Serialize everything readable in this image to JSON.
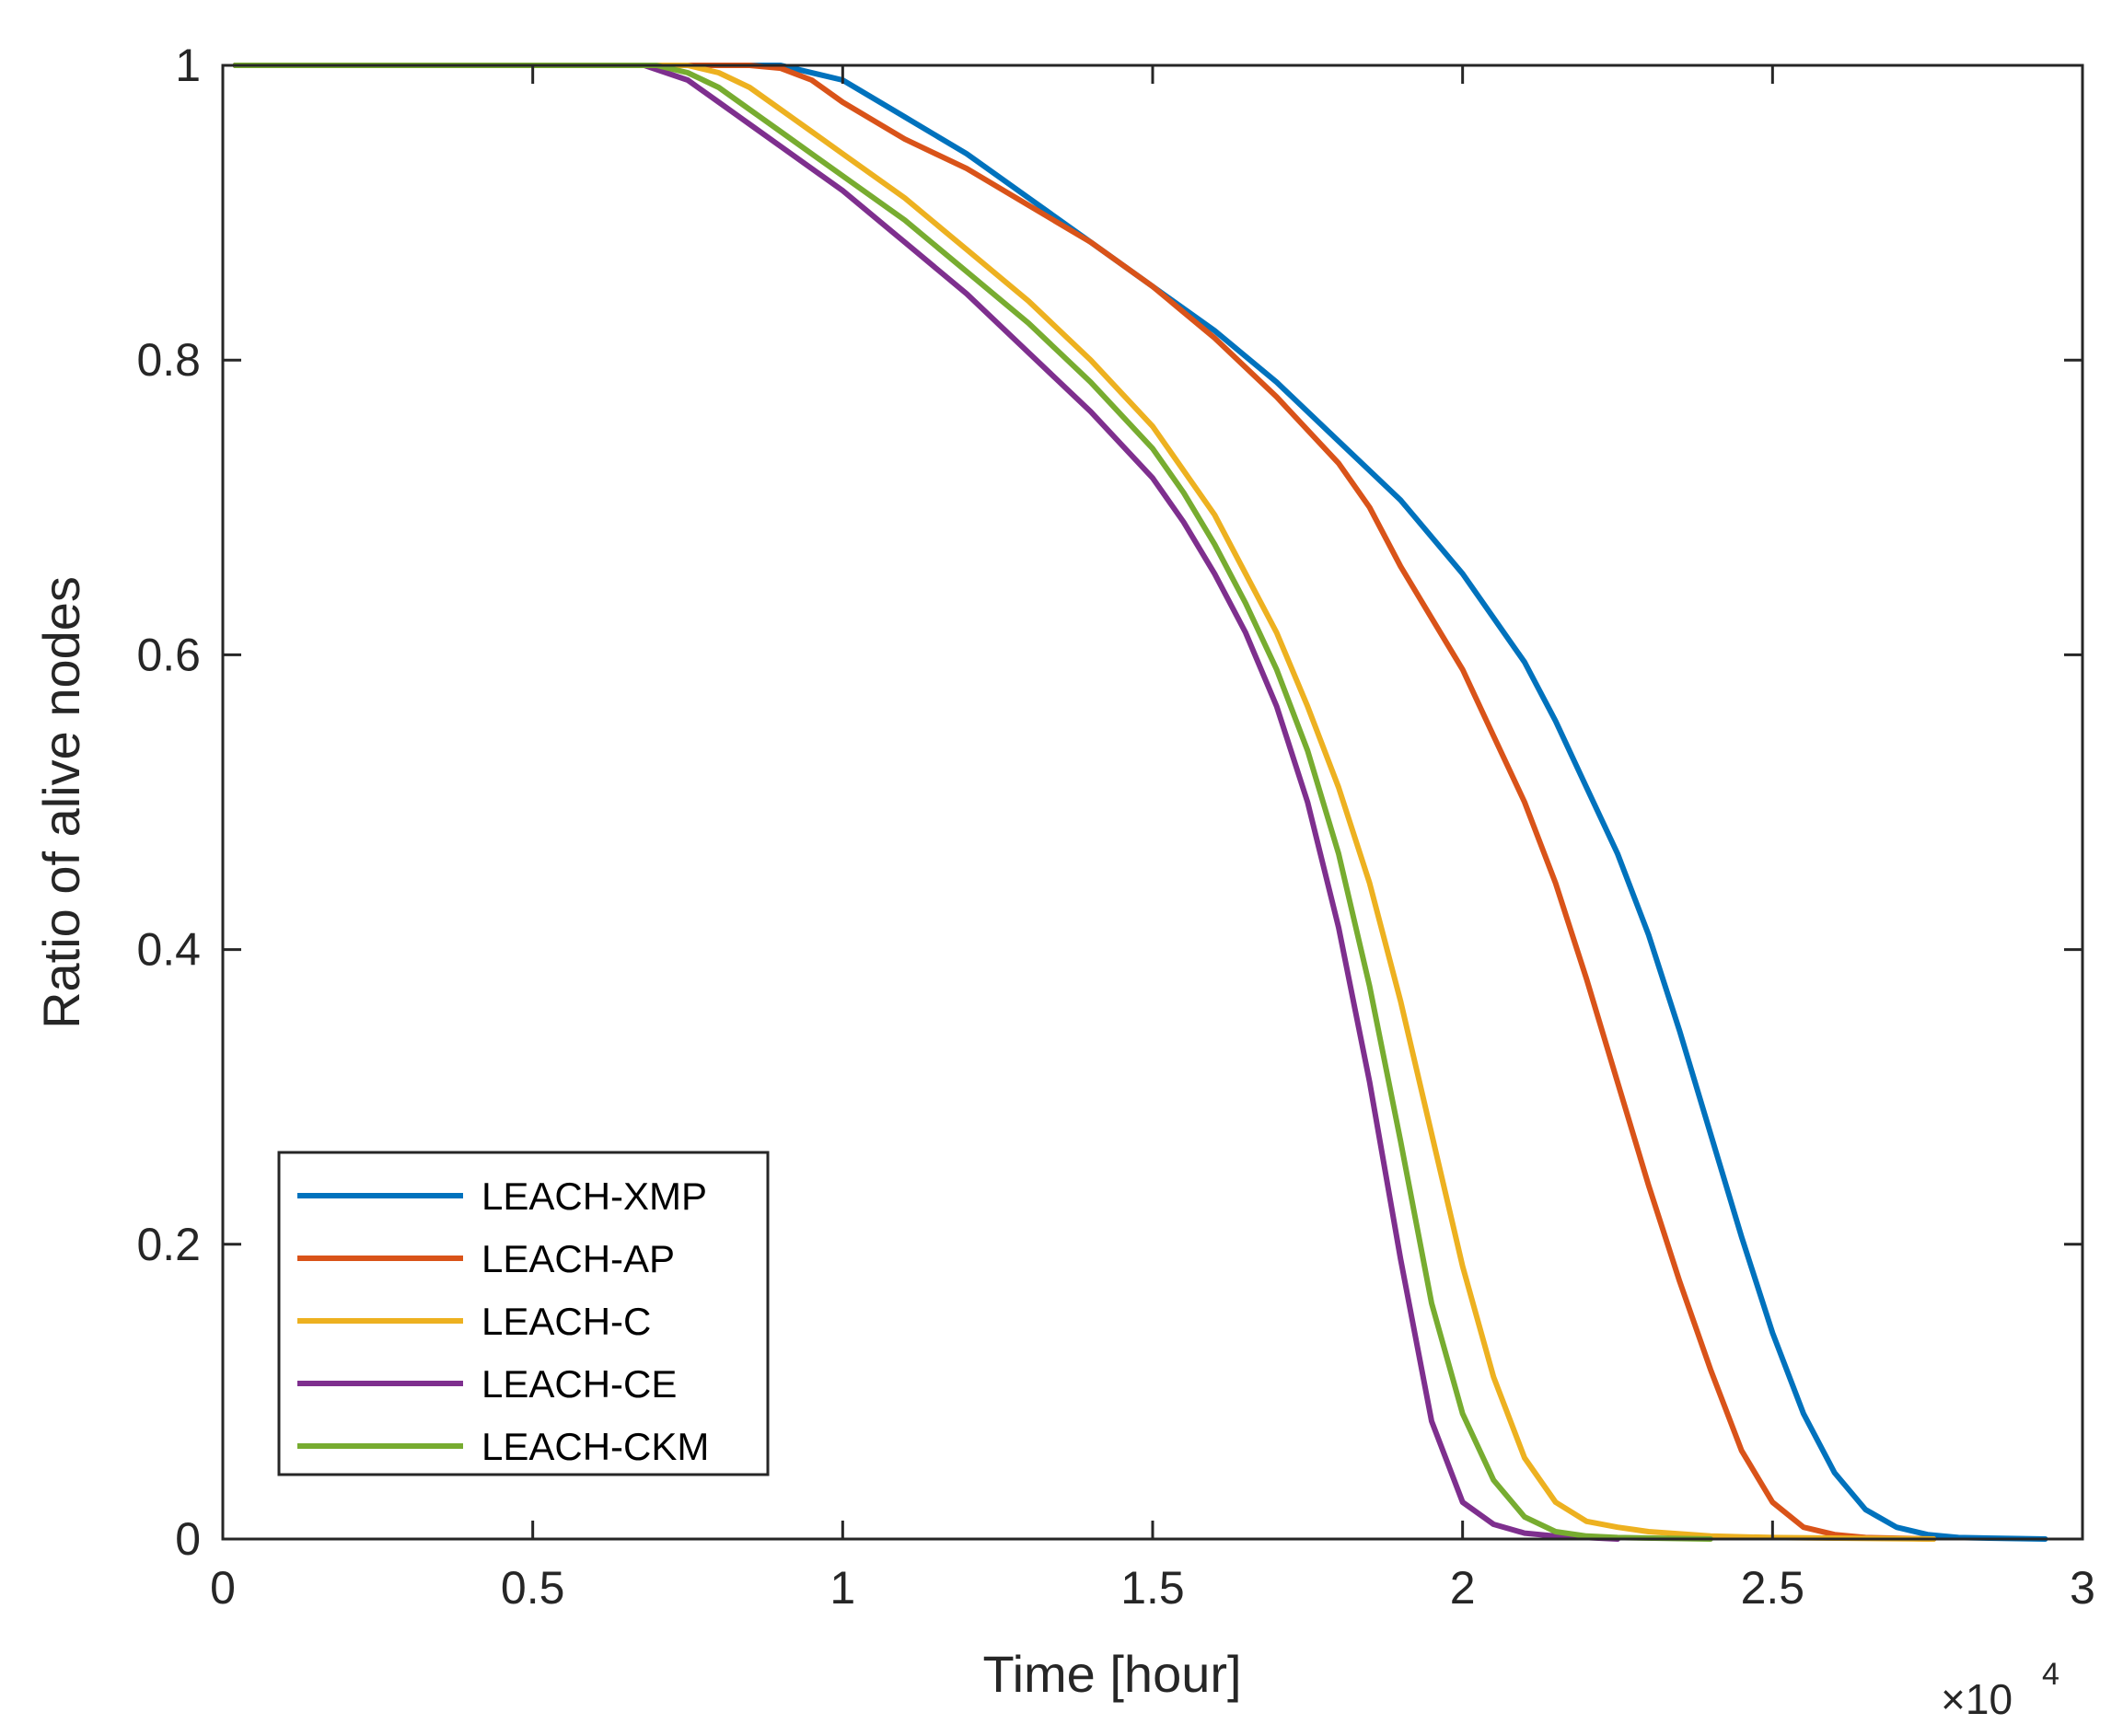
{
  "chart_data": {
    "type": "line",
    "title": "",
    "xlabel": "Time [hour]",
    "ylabel": "Ratio of alive nodes",
    "x_exponent_label": "×10",
    "x_exponent_power": "4",
    "xlim": [
      0,
      30000
    ],
    "ylim": [
      0,
      1
    ],
    "xticks": [
      0,
      5000,
      10000,
      15000,
      20000,
      25000,
      30000
    ],
    "xtick_labels": [
      "0",
      "0.5",
      "1",
      "1.5",
      "2",
      "2.5",
      "3"
    ],
    "yticks": [
      0,
      0.2,
      0.4,
      0.6,
      0.8,
      1
    ],
    "ytick_labels": [
      "0",
      "0.2",
      "0.4",
      "0.6",
      "0.8",
      "1"
    ],
    "grid": false,
    "legend_position": "bottom-left",
    "series": [
      {
        "name": "LEACH-XMP",
        "color": "#0072BD",
        "points": [
          [
            200,
            1
          ],
          [
            9000,
            1
          ],
          [
            10000,
            0.99
          ],
          [
            11000,
            0.965
          ],
          [
            12000,
            0.94
          ],
          [
            13000,
            0.91
          ],
          [
            14000,
            0.88
          ],
          [
            15000,
            0.85
          ],
          [
            16000,
            0.82
          ],
          [
            17000,
            0.785
          ],
          [
            18000,
            0.745
          ],
          [
            19000,
            0.705
          ],
          [
            20000,
            0.655
          ],
          [
            21000,
            0.595
          ],
          [
            21500,
            0.555
          ],
          [
            22000,
            0.51
          ],
          [
            22500,
            0.465
          ],
          [
            23000,
            0.41
          ],
          [
            23500,
            0.345
          ],
          [
            24000,
            0.275
          ],
          [
            24500,
            0.205
          ],
          [
            25000,
            0.14
          ],
          [
            25500,
            0.085
          ],
          [
            26000,
            0.045
          ],
          [
            26500,
            0.02
          ],
          [
            27000,
            0.008
          ],
          [
            27500,
            0.003
          ],
          [
            28000,
            0.001
          ],
          [
            29400,
            0
          ]
        ]
      },
      {
        "name": "LEACH-AP",
        "color": "#D95319",
        "points": [
          [
            200,
            1
          ],
          [
            8500,
            1
          ],
          [
            9000,
            0.998
          ],
          [
            9500,
            0.99
          ],
          [
            10000,
            0.975
          ],
          [
            11000,
            0.95
          ],
          [
            12000,
            0.93
          ],
          [
            13000,
            0.905
          ],
          [
            14000,
            0.88
          ],
          [
            15000,
            0.85
          ],
          [
            16000,
            0.815
          ],
          [
            17000,
            0.775
          ],
          [
            18000,
            0.73
          ],
          [
            18500,
            0.7
          ],
          [
            19000,
            0.66
          ],
          [
            19500,
            0.625
          ],
          [
            20000,
            0.59
          ],
          [
            20500,
            0.545
          ],
          [
            21000,
            0.5
          ],
          [
            21500,
            0.445
          ],
          [
            22000,
            0.38
          ],
          [
            22500,
            0.31
          ],
          [
            23000,
            0.24
          ],
          [
            23500,
            0.175
          ],
          [
            24000,
            0.115
          ],
          [
            24500,
            0.06
          ],
          [
            25000,
            0.025
          ],
          [
            25500,
            0.008
          ],
          [
            26000,
            0.003
          ],
          [
            26500,
            0.001
          ],
          [
            27600,
            0
          ]
        ]
      },
      {
        "name": "LEACH-C",
        "color": "#EDB120",
        "points": [
          [
            200,
            1
          ],
          [
            7500,
            1
          ],
          [
            8000,
            0.995
          ],
          [
            8500,
            0.985
          ],
          [
            9000,
            0.97
          ],
          [
            9500,
            0.955
          ],
          [
            10000,
            0.94
          ],
          [
            11000,
            0.91
          ],
          [
            12000,
            0.875
          ],
          [
            13000,
            0.84
          ],
          [
            14000,
            0.8
          ],
          [
            15000,
            0.755
          ],
          [
            15500,
            0.725
          ],
          [
            16000,
            0.695
          ],
          [
            16500,
            0.655
          ],
          [
            17000,
            0.615
          ],
          [
            17500,
            0.565
          ],
          [
            18000,
            0.51
          ],
          [
            18500,
            0.445
          ],
          [
            19000,
            0.365
          ],
          [
            19500,
            0.275
          ],
          [
            20000,
            0.185
          ],
          [
            20500,
            0.11
          ],
          [
            21000,
            0.055
          ],
          [
            21500,
            0.025
          ],
          [
            22000,
            0.012
          ],
          [
            22500,
            0.008
          ],
          [
            23000,
            0.005
          ],
          [
            24000,
            0.002
          ],
          [
            25000,
            0.001
          ],
          [
            27600,
            0
          ]
        ]
      },
      {
        "name": "LEACH-CE",
        "color": "#7E2F8E",
        "points": [
          [
            200,
            1
          ],
          [
            6800,
            1
          ],
          [
            7500,
            0.99
          ],
          [
            8000,
            0.975
          ],
          [
            8500,
            0.96
          ],
          [
            9000,
            0.945
          ],
          [
            10000,
            0.915
          ],
          [
            11000,
            0.88
          ],
          [
            12000,
            0.845
          ],
          [
            13000,
            0.805
          ],
          [
            14000,
            0.765
          ],
          [
            15000,
            0.72
          ],
          [
            15500,
            0.69
          ],
          [
            16000,
            0.655
          ],
          [
            16500,
            0.615
          ],
          [
            17000,
            0.565
          ],
          [
            17500,
            0.5
          ],
          [
            18000,
            0.415
          ],
          [
            18500,
            0.31
          ],
          [
            19000,
            0.19
          ],
          [
            19500,
            0.08
          ],
          [
            20000,
            0.025
          ],
          [
            20500,
            0.01
          ],
          [
            21000,
            0.004
          ],
          [
            21500,
            0.002
          ],
          [
            22000,
            0.001
          ],
          [
            22500,
            0
          ]
        ]
      },
      {
        "name": "LEACH-CKM",
        "color": "#77AC30",
        "points": [
          [
            200,
            1
          ],
          [
            7000,
            1
          ],
          [
            7500,
            0.995
          ],
          [
            8000,
            0.985
          ],
          [
            8500,
            0.97
          ],
          [
            9000,
            0.955
          ],
          [
            10000,
            0.925
          ],
          [
            11000,
            0.895
          ],
          [
            12000,
            0.86
          ],
          [
            13000,
            0.825
          ],
          [
            14000,
            0.785
          ],
          [
            15000,
            0.74
          ],
          [
            15500,
            0.71
          ],
          [
            16000,
            0.675
          ],
          [
            16500,
            0.635
          ],
          [
            17000,
            0.59
          ],
          [
            17500,
            0.535
          ],
          [
            18000,
            0.465
          ],
          [
            18500,
            0.375
          ],
          [
            19000,
            0.27
          ],
          [
            19500,
            0.16
          ],
          [
            20000,
            0.085
          ],
          [
            20500,
            0.04
          ],
          [
            21000,
            0.015
          ],
          [
            21500,
            0.005
          ],
          [
            22000,
            0.002
          ],
          [
            22500,
            0.001
          ],
          [
            24000,
            0
          ]
        ]
      }
    ]
  }
}
